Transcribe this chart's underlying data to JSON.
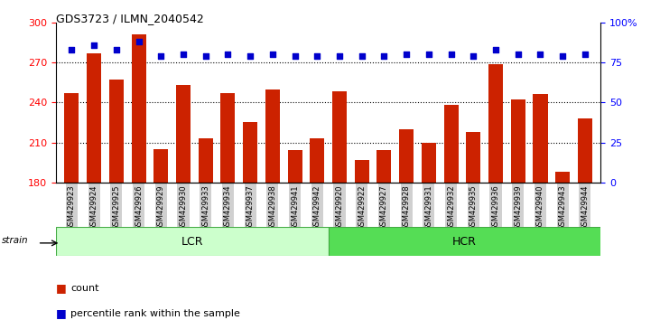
{
  "title": "GDS3723 / ILMN_2040542",
  "samples": [
    "GSM429923",
    "GSM429924",
    "GSM429925",
    "GSM429926",
    "GSM429929",
    "GSM429930",
    "GSM429933",
    "GSM429934",
    "GSM429937",
    "GSM429938",
    "GSM429941",
    "GSM429942",
    "GSM429920",
    "GSM429922",
    "GSM429927",
    "GSM429928",
    "GSM429931",
    "GSM429932",
    "GSM429935",
    "GSM429936",
    "GSM429939",
    "GSM429940",
    "GSM429943",
    "GSM429944"
  ],
  "counts": [
    247,
    277,
    257,
    291,
    205,
    253,
    213,
    247,
    225,
    250,
    204,
    213,
    248,
    197,
    204,
    220,
    210,
    238,
    218,
    269,
    242,
    246,
    188,
    228
  ],
  "percentile_ranks": [
    83,
    86,
    83,
    88,
    79,
    80,
    79,
    80,
    79,
    80,
    79,
    79,
    79,
    79,
    79,
    80,
    80,
    80,
    79,
    83,
    80,
    80,
    79,
    80
  ],
  "group_labels": [
    "LCR",
    "HCR"
  ],
  "group_sizes": [
    12,
    12
  ],
  "bar_color": "#cc2200",
  "dot_color": "#0000cc",
  "group_color_lcr": "#ccffcc",
  "group_color_hcr": "#55dd55",
  "ylim_left": [
    180,
    300
  ],
  "ylim_right": [
    0,
    100
  ],
  "yticks_left": [
    180,
    210,
    240,
    270,
    300
  ],
  "yticks_right": [
    0,
    25,
    50,
    75,
    100
  ],
  "grid_values": [
    210,
    240,
    270
  ],
  "tick_bg_color": "#d0d0d0"
}
